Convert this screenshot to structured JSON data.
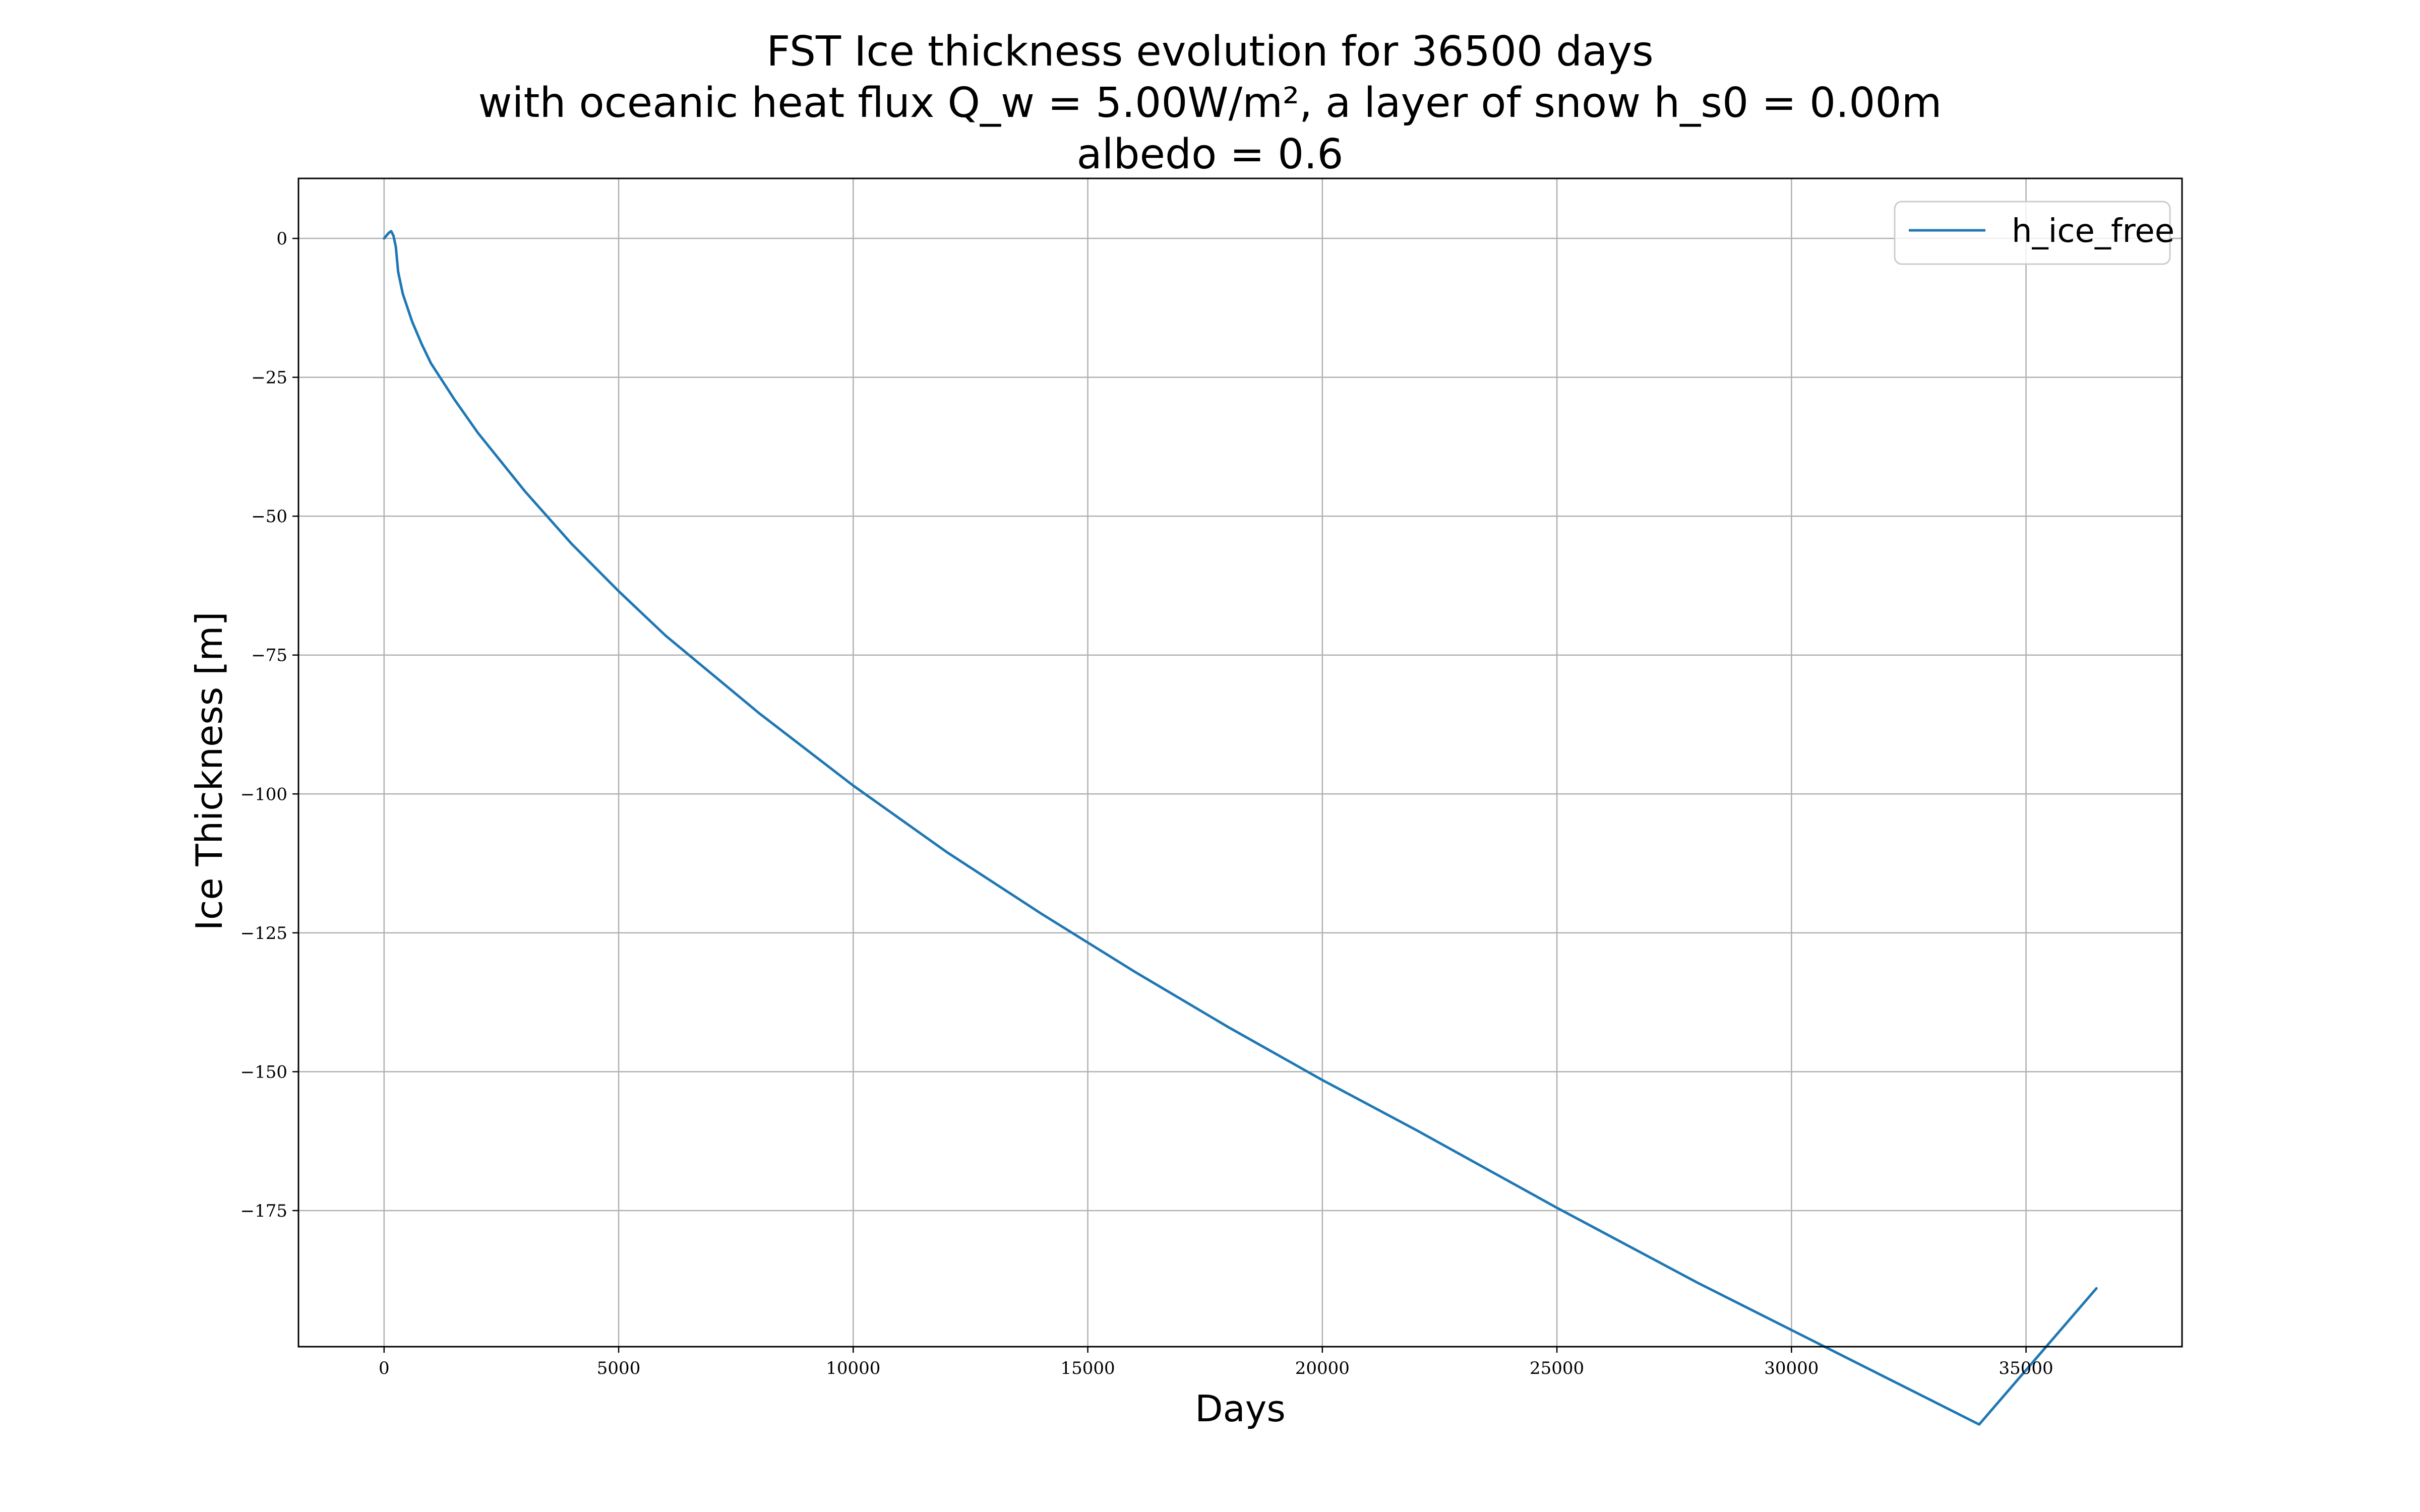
{
  "chart_data": {
    "type": "line",
    "title_lines": [
      "FST Ice thickness evolution for 36500 days",
      "with oceanic heat flux Q_w = 5.00W/m², a layer of snow h_s0 = 0.00m",
      "albedo = 0.6"
    ],
    "xlabel": "Days",
    "ylabel": "Ice Thickness [m]",
    "xlim": [
      -1825,
      38325
    ],
    "ylim": [
      -199.5,
      10.8
    ],
    "xticks": [
      0,
      5000,
      10000,
      15000,
      20000,
      25000,
      30000,
      35000
    ],
    "xtick_labels": [
      "0",
      "5000",
      "10000",
      "15000",
      "20000",
      "25000",
      "30000",
      "35000"
    ],
    "yticks": [
      0,
      -25,
      -50,
      -75,
      -100,
      -125,
      -150,
      -175
    ],
    "ytick_labels": [
      "0",
      "−25",
      "−50",
      "−75",
      "−100",
      "−125",
      "−150",
      "−175"
    ],
    "grid": true,
    "legend_position": "top-right",
    "series": [
      {
        "name": "h_ice_free",
        "color": "#1f77b4",
        "x": [
          0,
          50,
          100,
          150,
          200,
          250,
          300,
          400,
          600,
          800,
          1000,
          1500,
          2000,
          3000,
          4000,
          5000,
          6000,
          7000,
          8000,
          10000,
          12000,
          14000,
          16000,
          18000,
          20000,
          22000,
          25000,
          28000,
          30000,
          32000,
          34000,
          36500
        ],
        "y": [
          0,
          0.5,
          1.0,
          1.3,
          0.5,
          -1.5,
          -6.0,
          -10.0,
          -15.0,
          -19.0,
          -22.5,
          -29.0,
          -35.0,
          -45.5,
          -55.0,
          -63.5,
          -71.5,
          -78.5,
          -85.5,
          -98.5,
          -110.5,
          -121.5,
          -132.0,
          -142.0,
          -151.5,
          -160.5,
          -174.5,
          -188.0,
          -196.5,
          -205.0,
          -213.5,
          -189.0
        ]
      }
    ]
  }
}
